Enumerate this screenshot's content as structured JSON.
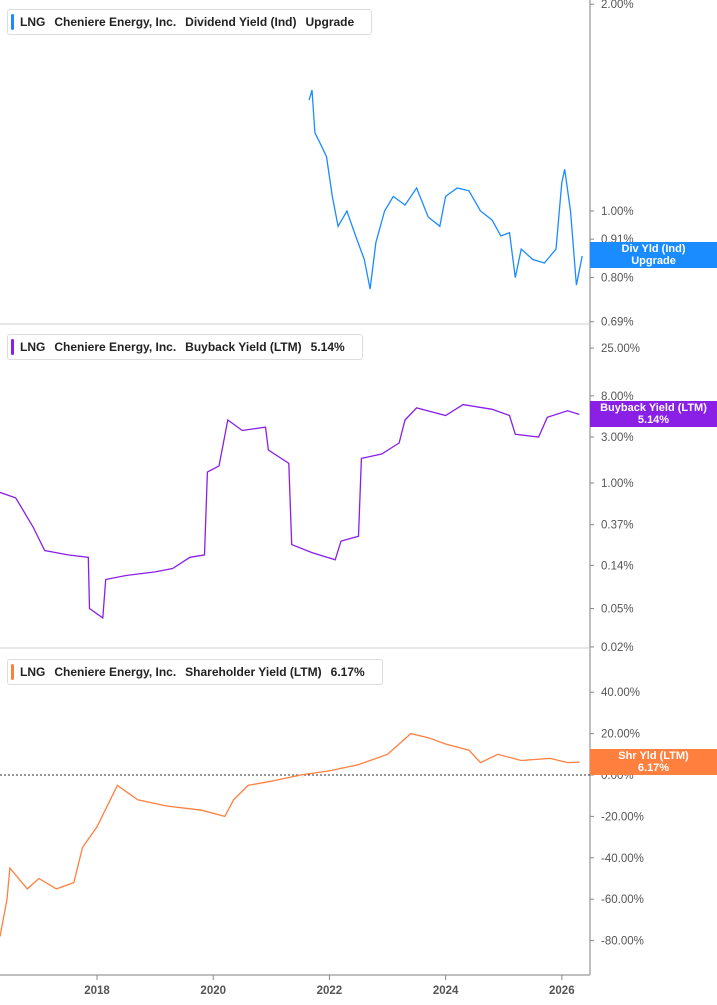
{
  "chart_data": [
    {
      "type": "line",
      "ticker": "LNG",
      "company": "Cheniere Energy, Inc.",
      "metric": "Dividend Yield (Ind)",
      "value_label": "Upgrade",
      "tag": [
        "Div Yld (Ind)",
        "Upgrade"
      ],
      "color": "#1a8cff",
      "scale": "log",
      "yticks": [
        "2.00%",
        "1.00%",
        "0.91%",
        "0.80%",
        "0.69%"
      ],
      "ytick_values": [
        2,
        1,
        0.91,
        0.8,
        0.69
      ],
      "points": [
        [
          2021.65,
          1.45
        ],
        [
          2021.7,
          1.5
        ],
        [
          2021.75,
          1.3
        ],
        [
          2021.85,
          1.25
        ],
        [
          2021.95,
          1.2
        ],
        [
          2022.05,
          1.05
        ],
        [
          2022.15,
          0.95
        ],
        [
          2022.3,
          1.0
        ],
        [
          2022.45,
          0.92
        ],
        [
          2022.6,
          0.85
        ],
        [
          2022.7,
          0.77
        ],
        [
          2022.8,
          0.9
        ],
        [
          2022.95,
          1.0
        ],
        [
          2023.1,
          1.05
        ],
        [
          2023.3,
          1.02
        ],
        [
          2023.5,
          1.08
        ],
        [
          2023.7,
          0.98
        ],
        [
          2023.9,
          0.95
        ],
        [
          2024.0,
          1.05
        ],
        [
          2024.2,
          1.08
        ],
        [
          2024.4,
          1.07
        ],
        [
          2024.6,
          1.0
        ],
        [
          2024.8,
          0.97
        ],
        [
          2024.95,
          0.92
        ],
        [
          2025.1,
          0.93
        ],
        [
          2025.2,
          0.8
        ],
        [
          2025.3,
          0.88
        ],
        [
          2025.5,
          0.85
        ],
        [
          2025.7,
          0.84
        ],
        [
          2025.9,
          0.88
        ],
        [
          2026.0,
          1.1
        ],
        [
          2026.05,
          1.15
        ],
        [
          2026.15,
          1.0
        ],
        [
          2026.25,
          0.78
        ],
        [
          2026.35,
          0.86
        ]
      ]
    },
    {
      "type": "line",
      "ticker": "LNG",
      "company": "Cheniere Energy, Inc.",
      "metric": "Buyback Yield (LTM)",
      "value_label": "5.14%",
      "tag": [
        "Buyback Yield (LTM)",
        "5.14%"
      ],
      "color": "#8a1fe6",
      "scale": "log",
      "yticks": [
        "25.00%",
        "8.00%",
        "3.00%",
        "1.00%",
        "0.37%",
        "0.14%",
        "0.05%",
        "0.02%"
      ],
      "ytick_values": [
        25,
        8,
        3,
        1,
        0.37,
        0.14,
        0.05,
        0.02
      ],
      "points": [
        [
          2016.33,
          0.8
        ],
        [
          2016.6,
          0.7
        ],
        [
          2016.9,
          0.35
        ],
        [
          2017.1,
          0.2
        ],
        [
          2017.5,
          0.18
        ],
        [
          2017.85,
          0.17
        ],
        [
          2017.87,
          0.05
        ],
        [
          2018.1,
          0.04
        ],
        [
          2018.15,
          0.1
        ],
        [
          2018.5,
          0.11
        ],
        [
          2019.0,
          0.12
        ],
        [
          2019.3,
          0.13
        ],
        [
          2019.6,
          0.17
        ],
        [
          2019.85,
          0.18
        ],
        [
          2019.9,
          1.3
        ],
        [
          2020.1,
          1.5
        ],
        [
          2020.25,
          4.5
        ],
        [
          2020.5,
          3.5
        ],
        [
          2020.9,
          3.8
        ],
        [
          2020.95,
          2.2
        ],
        [
          2021.3,
          1.6
        ],
        [
          2021.35,
          0.23
        ],
        [
          2021.7,
          0.19
        ],
        [
          2022.1,
          0.16
        ],
        [
          2022.2,
          0.25
        ],
        [
          2022.5,
          0.28
        ],
        [
          2022.55,
          1.8
        ],
        [
          2022.9,
          2.0
        ],
        [
          2023.2,
          2.6
        ],
        [
          2023.3,
          4.5
        ],
        [
          2023.5,
          6
        ],
        [
          2024.0,
          5
        ],
        [
          2024.3,
          6.5
        ],
        [
          2024.8,
          5.8
        ],
        [
          2025.1,
          5.0
        ],
        [
          2025.2,
          3.2
        ],
        [
          2025.6,
          3.0
        ],
        [
          2025.75,
          4.8
        ],
        [
          2026.1,
          5.6
        ],
        [
          2026.3,
          5.14
        ]
      ]
    },
    {
      "type": "line",
      "ticker": "LNG",
      "company": "Cheniere Energy, Inc.",
      "metric": "Shareholder Yield (LTM)",
      "value_label": "6.17%",
      "tag": [
        "Shr Yld (LTM)",
        "6.17%"
      ],
      "color": "#ff7f3f",
      "scale": "linear",
      "yticks": [
        "40.00%",
        "20.00%",
        "0.00%",
        "-20.00%",
        "-40.00%",
        "-60.00%",
        "-80.00%"
      ],
      "ytick_values": [
        40,
        20,
        0,
        -20,
        -40,
        -60,
        -80
      ],
      "points": [
        [
          2016.33,
          -78
        ],
        [
          2016.45,
          -60
        ],
        [
          2016.5,
          -45
        ],
        [
          2016.8,
          -55
        ],
        [
          2017.0,
          -50
        ],
        [
          2017.3,
          -55
        ],
        [
          2017.6,
          -52
        ],
        [
          2017.75,
          -35
        ],
        [
          2018.0,
          -25
        ],
        [
          2018.35,
          -5
        ],
        [
          2018.7,
          -12
        ],
        [
          2019.2,
          -15
        ],
        [
          2019.8,
          -17
        ],
        [
          2020.2,
          -20
        ],
        [
          2020.35,
          -12
        ],
        [
          2020.6,
          -5
        ],
        [
          2021.0,
          -3
        ],
        [
          2021.5,
          0
        ],
        [
          2022.0,
          2
        ],
        [
          2022.5,
          5
        ],
        [
          2023.0,
          10
        ],
        [
          2023.4,
          20
        ],
        [
          2023.7,
          18
        ],
        [
          2024.0,
          15
        ],
        [
          2024.4,
          12
        ],
        [
          2024.6,
          6
        ],
        [
          2024.9,
          10
        ],
        [
          2025.3,
          7
        ],
        [
          2025.8,
          8
        ],
        [
          2026.1,
          6
        ],
        [
          2026.3,
          6.17
        ]
      ]
    }
  ],
  "xaxis": {
    "ticks": [
      "2018",
      "2020",
      "2022",
      "2024",
      "2026"
    ],
    "values": [
      2018,
      2020,
      2022,
      2024,
      2026
    ]
  }
}
